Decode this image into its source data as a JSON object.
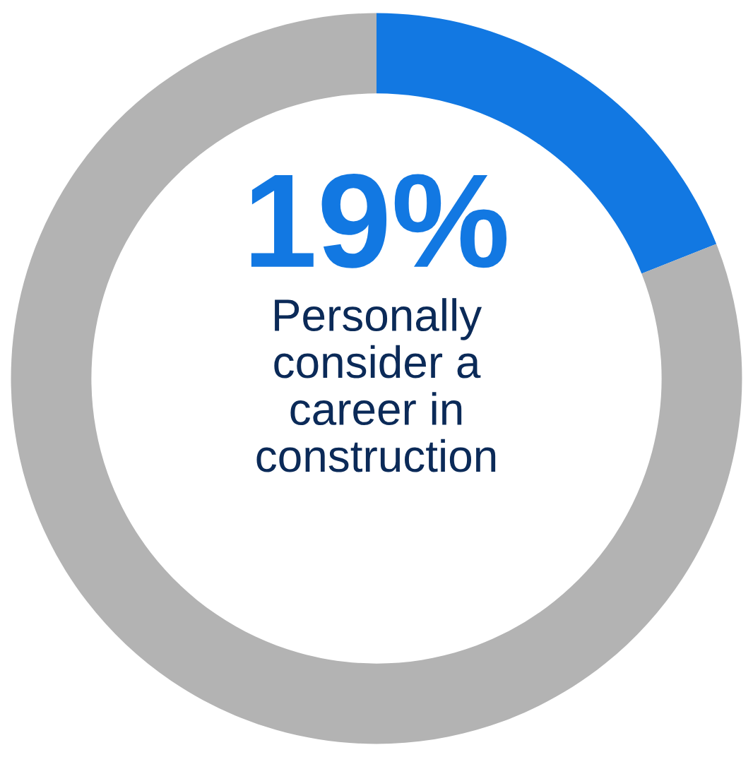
{
  "chart_data": {
    "type": "donut",
    "categories": [
      null,
      null
    ],
    "values": [
      19,
      81
    ],
    "colors": [
      "#1278e2",
      "#b3b3b3"
    ],
    "value_labels": [
      "19%",
      null
    ],
    "annotations": [
      "Personally\nconsider a\ncareer in\nconstruction"
    ]
  }
}
